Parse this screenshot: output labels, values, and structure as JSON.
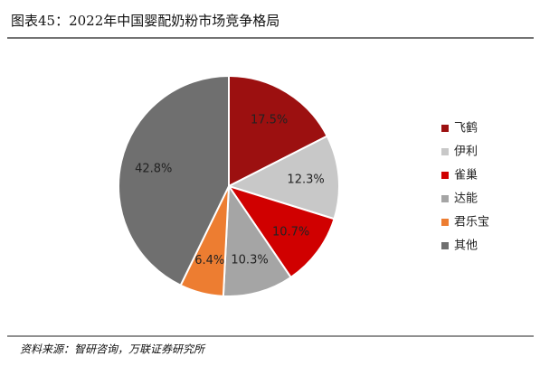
{
  "chart_data": {
    "type": "pie",
    "title": "图表45：2022年中国婴配奶粉市场竞争格局",
    "source": "资料来源：智研咨询，万联证券研究所",
    "categories": [
      "飞鹤",
      "伊利",
      "雀巢",
      "达能",
      "君乐宝",
      "其他"
    ],
    "values": [
      17.5,
      12.3,
      10.7,
      10.3,
      6.4,
      42.8
    ],
    "value_labels": [
      "17.5%",
      "12.3%",
      "10.7%",
      "10.3%",
      "6.4%",
      "42.8%"
    ],
    "colors": [
      "#9c1010",
      "#c8c8c8",
      "#d00000",
      "#a5a5a5",
      "#ed7d31",
      "#6f6f6f"
    ],
    "legend": "right"
  }
}
